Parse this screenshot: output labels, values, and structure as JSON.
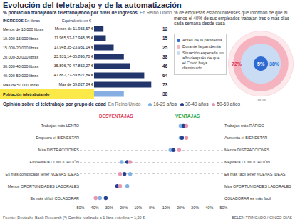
{
  "title": "Evolución del teletrabajo y de la automatización",
  "source": "Fuente: Deutsche Bank Research (*) Cambio realizado a 1 libra esterlina = 1,20 €",
  "credit": "BELÉN TRINCADO / CINCO DÍAS",
  "chart_data": [
    {
      "type": "bar",
      "orientation": "horizontal",
      "title": "% población trabajadora teletrabajando por nivel de ingresos",
      "subtitle": "En Reino Unido",
      "header_main": "INGRESOS",
      "header_note": "En libras",
      "header_second": "Equivalente en €",
      "categories": [
        "Menos de 10.000 libras",
        "10.000-15.000 libras",
        "15.000-20.000 libras",
        "20.000-30.000 libras",
        "30.000-40.000 libras",
        "40.000-50.000 libras",
        "Más de 50.000 libras",
        "Población teletrabajando"
      ],
      "categories_eur": [
        "Menos de 11.965,57 €",
        "11.965,57-17.948,35 €",
        "17.948,35-23.931,14 €",
        "23.931,14-35.896,70 €",
        "35.896,70-47.862,27 €",
        "47.862,27-59.827,84 €",
        "Más de 59.827,84 €",
        null
      ],
      "values": [
        12,
        15,
        25,
        38,
        46,
        64,
        73,
        38
      ],
      "colors": [
        "#23366b",
        "#23366b",
        "#23366b",
        "#23366b",
        "#23366b",
        "#23366b",
        "#23366b",
        "#86aee3"
      ],
      "xlim": [
        0,
        80
      ],
      "tick_labels": false,
      "data_labels": true
    },
    {
      "type": "concentric",
      "title": "% de empresas estadounidenses que informan de que al menos el 40% de sus empleados trabajan tres o más días cada semana desde casa",
      "categories": [
        "Antes de la pandemia",
        "Durante la pandemia",
        "Situación esperada un año después de que el Covid haya disminuido"
      ],
      "values": [
        5,
        72,
        38
      ],
      "value_labels": [
        "5%",
        "72%",
        "38%"
      ],
      "colors": [
        "#2e6ad1",
        "#f5b3c0",
        "#c9dcf4"
      ],
      "total": 100,
      "total_label": "100%",
      "legend": "left"
    },
    {
      "type": "dot",
      "title": "Opinión sobre el teletrabajo por grupo de edad",
      "subtitle": "En Reino Unido",
      "left_header": "DESVENTAJAS",
      "right_header": "VENTAJAS",
      "categories": [
        "Trabajan más LENTO",
        "Empeora el BIENESTAR",
        "Más DISTRACCIONES",
        "Empeora la CONCILIACIÓN",
        "Es más complicado tener NUEVAS IDEAS",
        "Menos OPORTUNIDADES LABORALES",
        "Es más difícil COLABORAR"
      ],
      "categories_right": [
        "Trabajan más RÁPIDO",
        "Aumenta el BIENESTAR",
        "Menos DISTRACCIONES",
        "Mejora la CONCILIACIÓN",
        "Es más fácil tener NUEVAS IDEAS",
        "Más OPORTUNIDADES LABORALES",
        "COLABORAR es más fácil"
      ],
      "series": [
        {
          "name": "16-29 años",
          "color": "#7fb2e5",
          "values": [
            20,
            20,
            13,
            -21,
            -15,
            -17,
            -36
          ]
        },
        {
          "name": "30-49 años",
          "color": "#25408f",
          "values": [
            22,
            21,
            15,
            -17,
            -19,
            -24,
            -32
          ]
        },
        {
          "name": "50-69 años",
          "color": "#e897b0",
          "values": [
            24,
            24,
            19,
            -15,
            -22,
            -22,
            -39
          ]
        }
      ],
      "xlim": [
        -50,
        50
      ],
      "xticks": [
        {
          "value": -50,
          "label": "-50%"
        },
        {
          "value": -40,
          "label": "-40%"
        },
        {
          "value": -30,
          "label": "-30%"
        },
        {
          "value": -20,
          "label": "-20%"
        },
        {
          "value": -10,
          "label": "-10%"
        },
        {
          "value": 0,
          "label": "0%"
        },
        {
          "value": 10,
          "label": "10%"
        },
        {
          "value": 20,
          "label": "20%"
        },
        {
          "value": 30,
          "label": "30%"
        },
        {
          "value": 40,
          "label": "40%"
        },
        {
          "value": 50,
          "label": "50%"
        }
      ],
      "grid": true,
      "marker": "circle",
      "legend": "top"
    }
  ]
}
